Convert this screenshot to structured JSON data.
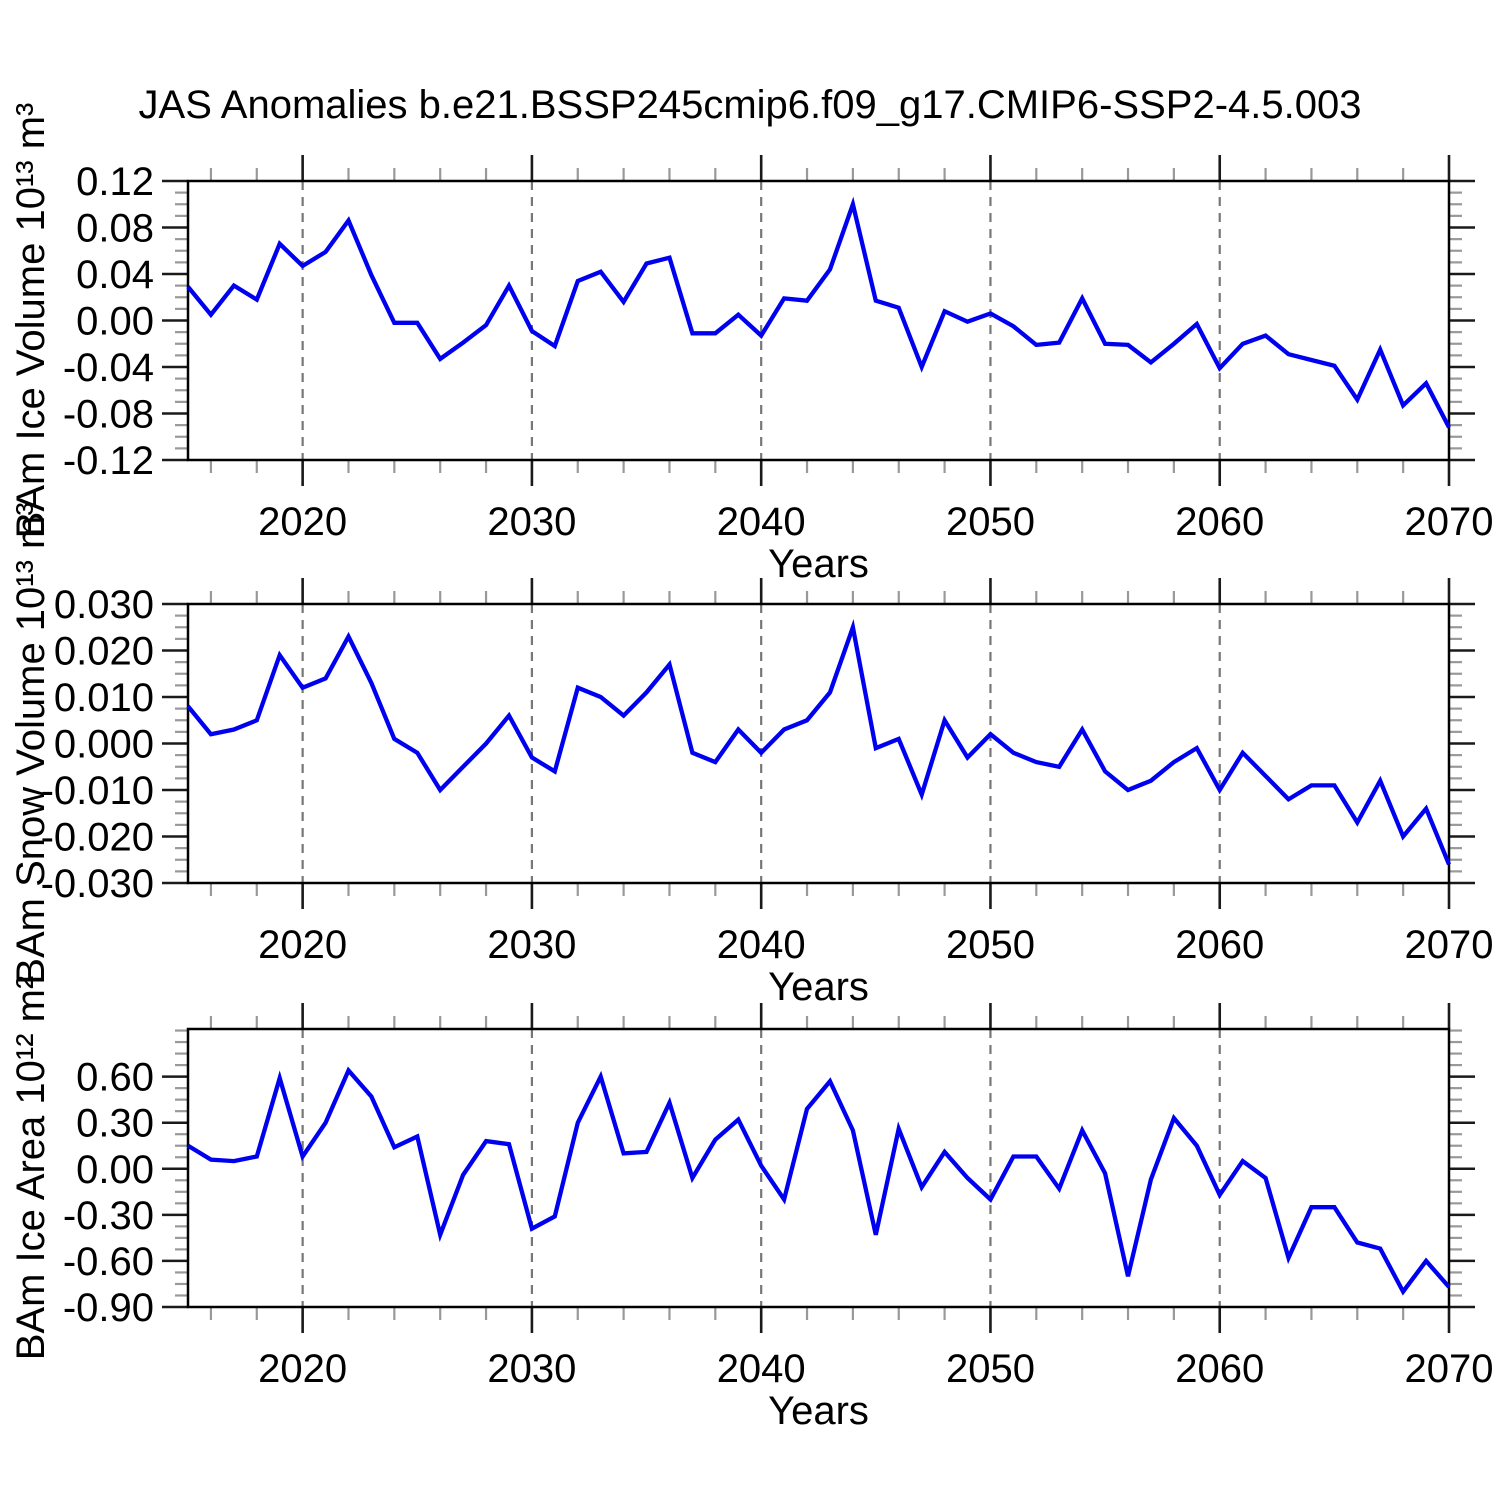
{
  "figure": {
    "title": "JAS Anomalies b.e21.BSSP245cmip6.f09_g17.CMIP6-SSP2-4.5.003",
    "background_color": "#ffffff",
    "line_color": "#0000f0",
    "grid_color": "#777777",
    "axis_color": "#000000"
  },
  "chart_data": [
    {
      "type": "line",
      "ylabel": "BAm Ice Volume 10¹³ m³",
      "xlabel": "Years",
      "legend": "none",
      "grid": "vertical-dashed-at-decades",
      "xlim": [
        2015,
        2070
      ],
      "ylim": [
        -0.12,
        0.12
      ],
      "xticks": [
        2020,
        2030,
        2040,
        2050,
        2060,
        2070
      ],
      "xtick_labels": [
        "2020",
        "2030",
        "2040",
        "2050",
        "2060",
        "2070"
      ],
      "x_minor_step": 2,
      "yticks": [
        0.12,
        0.08,
        0.04,
        0.0,
        -0.04,
        -0.08,
        -0.12
      ],
      "ytick_labels": [
        "0.12",
        "0.08",
        "0.04",
        "0.00",
        "-0.04",
        "-0.08",
        "-0.12"
      ],
      "y_minor_step": 0.01,
      "x": [
        2015,
        2016,
        2017,
        2018,
        2019,
        2020,
        2021,
        2022,
        2023,
        2024,
        2025,
        2026,
        2027,
        2028,
        2029,
        2030,
        2031,
        2032,
        2033,
        2034,
        2035,
        2036,
        2037,
        2038,
        2039,
        2040,
        2041,
        2042,
        2043,
        2044,
        2045,
        2046,
        2047,
        2048,
        2049,
        2050,
        2051,
        2052,
        2053,
        2054,
        2055,
        2056,
        2057,
        2058,
        2059,
        2060,
        2061,
        2062,
        2063,
        2064,
        2065,
        2066,
        2067,
        2068,
        2069,
        2070
      ],
      "values": [
        0.029,
        0.005,
        0.03,
        0.018,
        0.066,
        0.047,
        0.059,
        0.086,
        0.039,
        -0.002,
        -0.002,
        -0.033,
        -0.019,
        -0.004,
        0.03,
        -0.009,
        -0.022,
        0.034,
        0.042,
        0.016,
        0.049,
        0.054,
        -0.011,
        -0.011,
        0.005,
        -0.013,
        0.019,
        0.017,
        0.044,
        0.1,
        0.017,
        0.011,
        -0.04,
        0.008,
        -0.001,
        0.006,
        -0.005,
        -0.021,
        -0.019,
        0.019,
        -0.02,
        -0.021,
        -0.036,
        -0.02,
        -0.003,
        -0.041,
        -0.02,
        -0.013,
        -0.029,
        -0.034,
        -0.039,
        -0.068,
        -0.025,
        -0.073,
        -0.054,
        -0.092
      ]
    },
    {
      "type": "line",
      "ylabel": "BAm Snow Volume 10¹³ m³",
      "xlabel": "Years",
      "legend": "none",
      "grid": "vertical-dashed-at-decades",
      "xlim": [
        2015,
        2070
      ],
      "ylim": [
        -0.03,
        0.03
      ],
      "xticks": [
        2020,
        2030,
        2040,
        2050,
        2060,
        2070
      ],
      "xtick_labels": [
        "2020",
        "2030",
        "2040",
        "2050",
        "2060",
        "2070"
      ],
      "x_minor_step": 2,
      "yticks": [
        0.03,
        0.02,
        0.01,
        0.0,
        -0.01,
        -0.02,
        -0.03
      ],
      "ytick_labels": [
        "0.030",
        "0.020",
        "0.010",
        "0.000",
        "-0.010",
        "-0.020",
        "-0.030"
      ],
      "y_minor_step": 0.0025,
      "x": [
        2015,
        2016,
        2017,
        2018,
        2019,
        2020,
        2021,
        2022,
        2023,
        2024,
        2025,
        2026,
        2027,
        2028,
        2029,
        2030,
        2031,
        2032,
        2033,
        2034,
        2035,
        2036,
        2037,
        2038,
        2039,
        2040,
        2041,
        2042,
        2043,
        2044,
        2045,
        2046,
        2047,
        2048,
        2049,
        2050,
        2051,
        2052,
        2053,
        2054,
        2055,
        2056,
        2057,
        2058,
        2059,
        2060,
        2061,
        2062,
        2063,
        2064,
        2065,
        2066,
        2067,
        2068,
        2069,
        2070
      ],
      "values": [
        0.008,
        0.002,
        0.003,
        0.005,
        0.019,
        0.012,
        0.014,
        0.023,
        0.013,
        0.001,
        -0.002,
        -0.01,
        -0.005,
        0.0,
        0.006,
        -0.003,
        -0.006,
        0.012,
        0.01,
        0.006,
        0.011,
        0.017,
        -0.002,
        -0.004,
        0.003,
        -0.002,
        0.003,
        0.005,
        0.011,
        0.025,
        -0.001,
        0.001,
        -0.011,
        0.005,
        -0.003,
        0.002,
        -0.002,
        -0.004,
        -0.005,
        0.003,
        -0.006,
        -0.01,
        -0.008,
        -0.004,
        -0.001,
        -0.01,
        -0.002,
        -0.007,
        -0.012,
        -0.009,
        -0.009,
        -0.017,
        -0.008,
        -0.02,
        -0.014,
        -0.026
      ]
    },
    {
      "type": "line",
      "ylabel": "BAm Ice Area 10¹² m²",
      "xlabel": "Years",
      "legend": "none",
      "grid": "vertical-dashed-at-decades",
      "xlim": [
        2015,
        2070
      ],
      "ylim": [
        -0.9,
        0.91
      ],
      "xticks": [
        2020,
        2030,
        2040,
        2050,
        2060,
        2070
      ],
      "xtick_labels": [
        "2020",
        "2030",
        "2040",
        "2050",
        "2060",
        "2070"
      ],
      "x_minor_step": 2,
      "yticks": [
        0.6,
        0.3,
        0.0,
        -0.3,
        -0.6,
        -0.9
      ],
      "ytick_labels": [
        "0.60",
        "0.30",
        "0.00",
        "-0.30",
        "-0.60",
        "-0.90"
      ],
      "y_minor_step": 0.075,
      "x": [
        2015,
        2016,
        2017,
        2018,
        2019,
        2020,
        2021,
        2022,
        2023,
        2024,
        2025,
        2026,
        2027,
        2028,
        2029,
        2030,
        2031,
        2032,
        2033,
        2034,
        2035,
        2036,
        2037,
        2038,
        2039,
        2040,
        2041,
        2042,
        2043,
        2044,
        2045,
        2046,
        2047,
        2048,
        2049,
        2050,
        2051,
        2052,
        2053,
        2054,
        2055,
        2056,
        2057,
        2058,
        2059,
        2060,
        2061,
        2062,
        2063,
        2064,
        2065,
        2066,
        2067,
        2068,
        2069,
        2070
      ],
      "values": [
        0.15,
        0.06,
        0.05,
        0.08,
        0.59,
        0.08,
        0.3,
        0.64,
        0.47,
        0.14,
        0.21,
        -0.43,
        -0.04,
        0.18,
        0.16,
        -0.39,
        -0.31,
        0.3,
        0.6,
        0.1,
        0.11,
        0.43,
        -0.06,
        0.19,
        0.32,
        0.02,
        -0.2,
        0.39,
        0.57,
        0.25,
        -0.43,
        0.26,
        -0.12,
        0.11,
        -0.06,
        -0.2,
        0.08,
        0.08,
        -0.13,
        0.25,
        -0.03,
        -0.7,
        -0.07,
        0.33,
        0.15,
        -0.17,
        0.05,
        -0.06,
        -0.58,
        -0.25,
        -0.25,
        -0.48,
        -0.52,
        -0.8,
        -0.6,
        -0.77
      ]
    }
  ]
}
